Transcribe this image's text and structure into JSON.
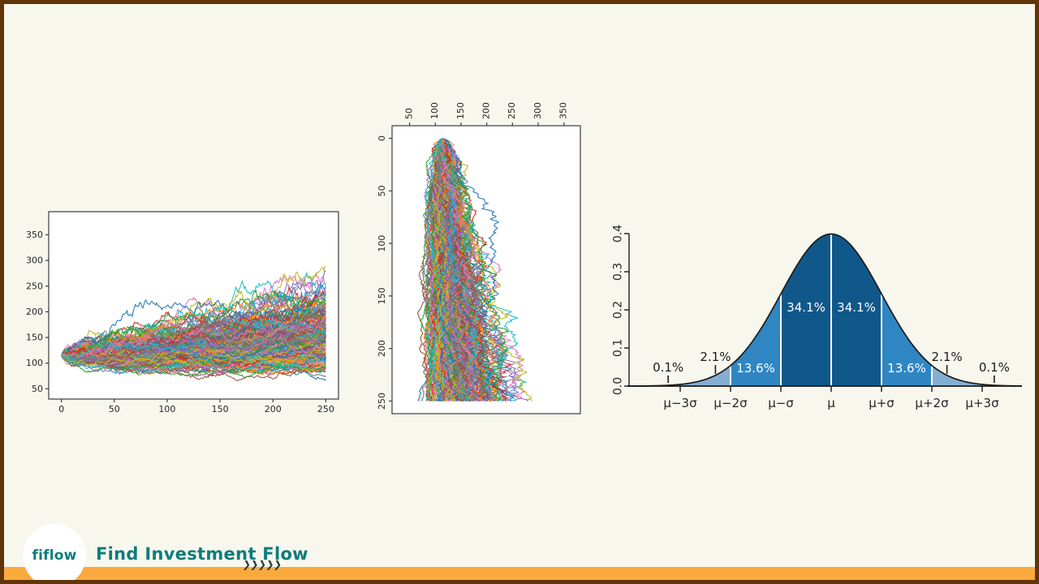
{
  "slide": {
    "colors": {
      "background": "#f7f7ee",
      "frame_border": "#613409",
      "footer_bar_orange": "#faaa3c",
      "brand_teal": "#0d7c7c",
      "chevron_dark": "#233e3e",
      "plot_frame": "#3c3c3c",
      "tick_text": "#262626"
    }
  },
  "footer": {
    "logo_text": "fiflow",
    "brand": "Find Investment Flow",
    "chevrons": "❯❯❯❯❯"
  },
  "chart_data": [
    {
      "id": "mc_horizontal",
      "type": "line",
      "subtype": "monte-carlo-simulation-paths",
      "orientation": "time-rightward",
      "x_ticks": [
        0,
        50,
        100,
        150,
        200,
        250
      ],
      "y_ticks": [
        50,
        100,
        150,
        200,
        250,
        300,
        350
      ],
      "xlim": [
        -12,
        262
      ],
      "ylim": [
        30,
        395
      ],
      "n_paths": 180,
      "n_steps": 250,
      "initial_value": 115,
      "drift_per_step": 0.00106,
      "volatility_per_step": 0.0205,
      "seed": 1337,
      "grid": false,
      "legend": "none",
      "palette": [
        "#1f77b4",
        "#ff7f0e",
        "#2ca02c",
        "#d62728",
        "#9467bd",
        "#8c564b",
        "#e377c2",
        "#7f7f7f",
        "#bcbd22",
        "#17becf"
      ]
    },
    {
      "id": "mc_vertical",
      "type": "line",
      "subtype": "monte-carlo-simulation-paths",
      "orientation": "time-downward",
      "top_axis_ticks": [
        50,
        100,
        150,
        200,
        250,
        300,
        350
      ],
      "left_axis_ticks": [
        0,
        50,
        100,
        150,
        200,
        250
      ],
      "value_lim": [
        16,
        382
      ],
      "time_lim": [
        -12,
        262
      ],
      "n_paths": 180,
      "n_steps": 250,
      "initial_value": 115,
      "drift_per_step": 0.00106,
      "volatility_per_step": 0.0205,
      "seed": 1337,
      "grid": false,
      "legend": "none",
      "tick_label_rotation_deg": 90,
      "palette": [
        "#1f77b4",
        "#ff7f0e",
        "#2ca02c",
        "#d62728",
        "#9467bd",
        "#8c564b",
        "#e377c2",
        "#7f7f7f",
        "#bcbd22",
        "#17becf"
      ]
    },
    {
      "id": "normal_distribution",
      "type": "area",
      "subtype": "gaussian-standard-deviation-bands",
      "y_tick_labels": [
        "0.0",
        "0.1",
        "0.2",
        "0.3",
        "0.4"
      ],
      "y_tick_values": [
        0.0,
        0.1,
        0.2,
        0.3,
        0.4
      ],
      "x_tick_labels": [
        "μ−3σ",
        "μ−2σ",
        "μ−σ",
        "μ",
        "μ+σ",
        "μ+2σ",
        "μ+3σ"
      ],
      "x_tick_sigma": [
        -3,
        -2,
        -1,
        0,
        1,
        2,
        3
      ],
      "ylim": [
        0,
        0.4
      ],
      "xlim_sigma": [
        -4.05,
        3.8
      ],
      "peak_density": 0.3989,
      "grid": false,
      "band_colors": {
        "mu_to_1sigma": "#11588a",
        "s1_to_2sigma": "#2f86c2",
        "s2_to_3sigma": "#85aed3",
        "beyond_3sigma": "#b9d0e5",
        "separator": "#ffffff",
        "curve": "#1a1a1a"
      },
      "region_labels": [
        {
          "text": "0.1%",
          "z": -3.24,
          "style": "dark-outside"
        },
        {
          "text": "2.1%",
          "z": -2.3,
          "style": "dark-outside"
        },
        {
          "text": "13.6%",
          "z": -1.5,
          "style": "white-inside"
        },
        {
          "text": "34.1%",
          "z": -0.5,
          "style": "white-inside"
        },
        {
          "text": "34.1%",
          "z": 0.5,
          "style": "white-inside"
        },
        {
          "text": "13.6%",
          "z": 1.5,
          "style": "white-inside"
        },
        {
          "text": "2.1%",
          "z": 2.3,
          "style": "dark-outside"
        },
        {
          "text": "0.1%",
          "z": 3.24,
          "style": "dark-outside"
        }
      ]
    }
  ]
}
